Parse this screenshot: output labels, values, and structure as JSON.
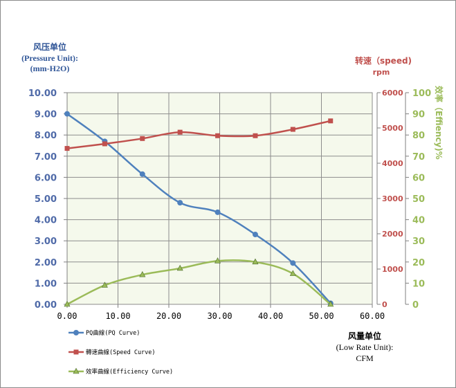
{
  "left_axis": {
    "title_lines": [
      "风压单位",
      "(Pressure Unit):",
      "(mm-H2O)"
    ],
    "ticks": [
      "0.00",
      "1.00",
      "2.00",
      "3.00",
      "4.00",
      "5.00",
      "6.00",
      "7.00",
      "8.00",
      "9.00",
      "10.00"
    ],
    "color": "#4f6aa8"
  },
  "speed_axis": {
    "title_lines": [
      "转速（speed)",
      "rpm"
    ],
    "ticks": [
      "0",
      "1000",
      "2000",
      "3000",
      "4000",
      "5000",
      "6000"
    ],
    "color": "#c0504d"
  },
  "eff_axis": {
    "title": "效率（Effiency)%",
    "ticks": [
      "0",
      "10",
      "20",
      "30",
      "40",
      "50",
      "60",
      "70",
      "80",
      "90",
      "100"
    ],
    "color": "#9bbb59"
  },
  "x_axis": {
    "title_lines": [
      "风量单位",
      "(Low Rate Unit):",
      "CFM"
    ],
    "ticks": [
      "0.00",
      "10.00",
      "20.00",
      "30.00",
      "40.00",
      "50.00",
      "60.00"
    ]
  },
  "legend": [
    {
      "label": "PQ曲線(PQ Curve)",
      "color": "#4f81bd",
      "marker": "circle"
    },
    {
      "label": "轉速曲線(Speed Curve)",
      "color": "#c0504d",
      "marker": "square"
    },
    {
      "label": "效率曲線(Efficiency Curve)",
      "color": "#9bbb59",
      "marker": "triangle"
    }
  ],
  "chart_data": {
    "type": "line",
    "xlim": [
      0,
      60
    ],
    "ylim_pressure": [
      0,
      10
    ],
    "ylim_speed": [
      0,
      6000
    ],
    "ylim_efficiency": [
      0,
      100
    ],
    "grid": true,
    "legend_position": "bottom-left",
    "series": [
      {
        "name": "PQ曲線(PQ Curve)",
        "axis": "pressure",
        "x": [
          0,
          7.4,
          14.8,
          22.2,
          29.6,
          37.0,
          44.4,
          51.8
        ],
        "y": [
          9.0,
          7.7,
          6.15,
          4.8,
          4.35,
          3.3,
          1.95,
          0.05
        ]
      },
      {
        "name": "轉速曲線(Speed Curve)",
        "axis": "speed",
        "x": [
          0,
          7.4,
          14.8,
          22.2,
          29.6,
          37.0,
          44.4,
          51.8
        ],
        "y": [
          4420,
          4550,
          4700,
          4880,
          4780,
          4780,
          4960,
          5200
        ]
      },
      {
        "name": "效率曲線(Efficiency Curve)",
        "axis": "efficiency",
        "x": [
          0,
          7.4,
          14.8,
          22.2,
          29.6,
          37.0,
          44.4,
          51.8
        ],
        "y": [
          0,
          9,
          14,
          17,
          20.5,
          20,
          14.5,
          0
        ]
      }
    ]
  }
}
